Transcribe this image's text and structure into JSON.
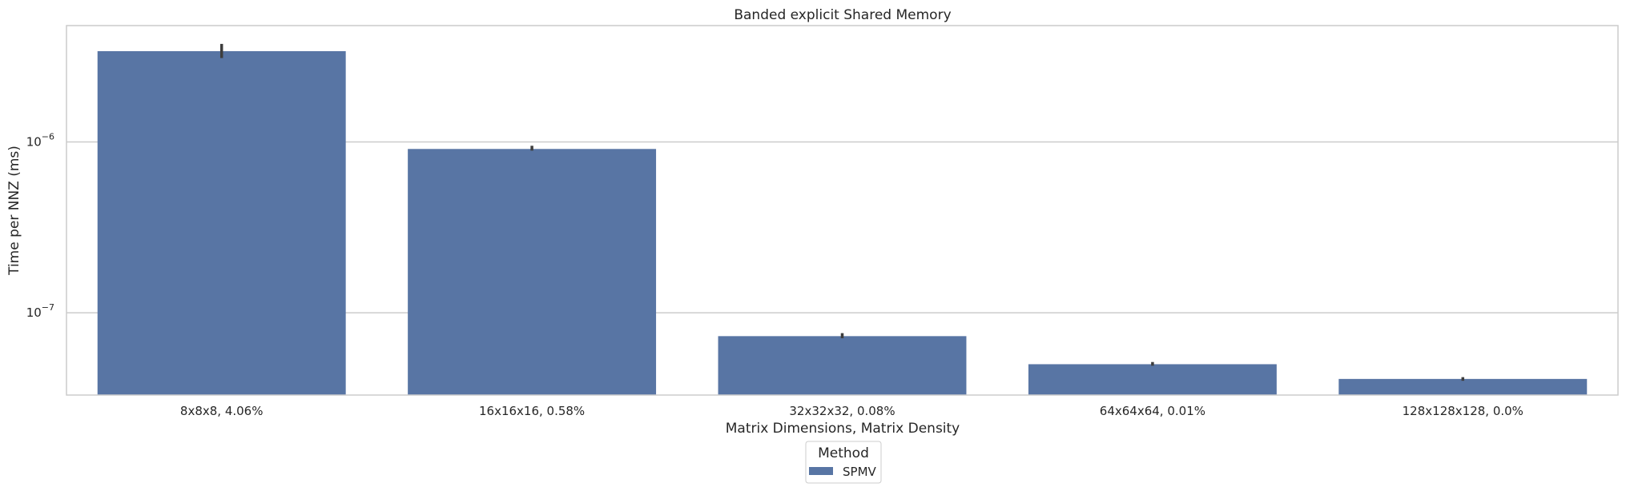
{
  "chart_data": {
    "type": "bar",
    "title": "Banded explicit Shared Memory",
    "xlabel": "Matrix Dimensions, Matrix Density",
    "ylabel": "Time per NNZ (ms)",
    "yscale": "log",
    "ylim": [
      3.3e-08,
      4.8e-06
    ],
    "yticks": [
      {
        "value": 1e-07,
        "base": "10",
        "exp": "−7"
      },
      {
        "value": 1e-06,
        "base": "10",
        "exp": "−6"
      }
    ],
    "grid": "horizontal",
    "categories": [
      "8x8x8, 4.06%",
      "16x16x16, 0.58%",
      "32x32x32, 0.08%",
      "64x64x64, 0.01%",
      "128x128x128, 0.0%"
    ],
    "series": [
      {
        "name": "SPMV",
        "color": "#5875a4",
        "values": [
          3.4e-06,
          9.1e-07,
          7.3e-08,
          5e-08,
          4.1e-08
        ],
        "error_low": [
          3.1e-06,
          8.9e-07,
          7.1e-08,
          4.9e-08,
          4e-08
        ],
        "error_high": [
          3.75e-06,
          9.5e-07,
          7.6e-08,
          5.15e-08,
          4.2e-08
        ]
      }
    ],
    "legend": {
      "title": "Method",
      "position": "bottom-center"
    }
  }
}
